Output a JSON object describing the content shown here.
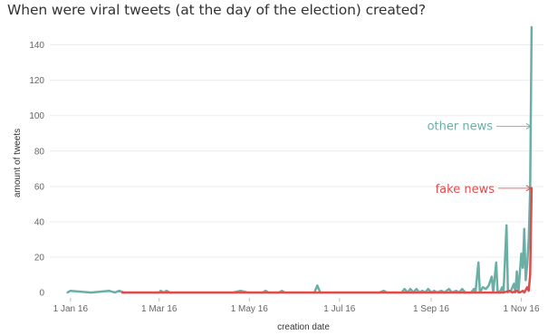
{
  "header": {
    "title": "When were viral tweets (at the day of the election) created?"
  },
  "colors": {
    "other_news": "#6aafa5",
    "fake_news": "#e04b4b",
    "grid": "#ececec",
    "baseline": "#cfcfcf"
  },
  "chart_data": {
    "type": "line",
    "title": "When were viral tweets (at the day of the election) created?",
    "xlabel": "creation date",
    "ylabel": "amount of tweets",
    "ylim": [
      -3,
      150
    ],
    "y_ticks": [
      0,
      20,
      40,
      60,
      80,
      100,
      120,
      140
    ],
    "xlim": [
      "2015-12-18",
      "2016-11-16"
    ],
    "x_ticks": [
      {
        "date": "2016-01-01",
        "label": "1 Jan 16"
      },
      {
        "date": "2016-03-01",
        "label": "1 Mar 16"
      },
      {
        "date": "2016-05-01",
        "label": "1 May 16"
      },
      {
        "date": "2016-07-01",
        "label": "1 Jul 16"
      },
      {
        "date": "2016-09-01",
        "label": "1 Sep 16"
      },
      {
        "date": "2016-11-01",
        "label": "1 Nov 16"
      }
    ],
    "grid": "horizontal",
    "series": [
      {
        "name": "other news",
        "color": "#6aafa5",
        "points": [
          [
            "2015-12-30",
            0
          ],
          [
            "2016-01-01",
            1
          ],
          [
            "2016-01-15",
            0
          ],
          [
            "2016-01-27",
            1
          ],
          [
            "2016-01-31",
            0
          ],
          [
            "2016-02-03",
            1
          ],
          [
            "2016-02-06",
            0
          ],
          [
            "2016-03-01",
            0
          ],
          [
            "2016-03-02",
            1
          ],
          [
            "2016-03-04",
            0
          ],
          [
            "2016-03-06",
            1
          ],
          [
            "2016-03-08",
            0
          ],
          [
            "2016-04-20",
            0
          ],
          [
            "2016-04-25",
            1
          ],
          [
            "2016-04-30",
            0
          ],
          [
            "2016-05-10",
            0
          ],
          [
            "2016-05-12",
            1
          ],
          [
            "2016-05-14",
            0
          ],
          [
            "2016-05-21",
            0
          ],
          [
            "2016-05-23",
            1
          ],
          [
            "2016-05-25",
            0
          ],
          [
            "2016-06-14",
            0
          ],
          [
            "2016-06-16",
            4
          ],
          [
            "2016-06-18",
            0
          ],
          [
            "2016-07-28",
            0
          ],
          [
            "2016-07-31",
            1
          ],
          [
            "2016-08-02",
            0
          ],
          [
            "2016-08-12",
            0
          ],
          [
            "2016-08-14",
            2
          ],
          [
            "2016-08-16",
            0
          ],
          [
            "2016-08-18",
            2
          ],
          [
            "2016-08-20",
            0
          ],
          [
            "2016-08-22",
            2
          ],
          [
            "2016-08-24",
            0
          ],
          [
            "2016-08-26",
            1
          ],
          [
            "2016-08-28",
            0
          ],
          [
            "2016-08-30",
            2
          ],
          [
            "2016-09-01",
            0
          ],
          [
            "2016-09-03",
            1
          ],
          [
            "2016-09-05",
            0
          ],
          [
            "2016-09-08",
            1
          ],
          [
            "2016-09-10",
            0
          ],
          [
            "2016-09-13",
            2
          ],
          [
            "2016-09-15",
            0
          ],
          [
            "2016-09-18",
            1
          ],
          [
            "2016-09-20",
            0
          ],
          [
            "2016-09-22",
            2
          ],
          [
            "2016-09-24",
            0
          ],
          [
            "2016-09-28",
            0
          ],
          [
            "2016-09-30",
            2
          ],
          [
            "2016-10-01",
            0
          ],
          [
            "2016-10-03",
            17
          ],
          [
            "2016-10-04",
            0
          ],
          [
            "2016-10-06",
            3
          ],
          [
            "2016-10-08",
            2
          ],
          [
            "2016-10-10",
            4
          ],
          [
            "2016-10-12",
            9
          ],
          [
            "2016-10-13",
            0
          ],
          [
            "2016-10-15",
            17
          ],
          [
            "2016-10-16",
            0
          ],
          [
            "2016-10-18",
            1
          ],
          [
            "2016-10-19",
            3
          ],
          [
            "2016-10-20",
            0
          ],
          [
            "2016-10-22",
            38
          ],
          [
            "2016-10-23",
            0
          ],
          [
            "2016-10-25",
            1
          ],
          [
            "2016-10-27",
            5
          ],
          [
            "2016-10-28",
            0
          ],
          [
            "2016-10-29",
            12
          ],
          [
            "2016-10-30",
            0
          ],
          [
            "2016-11-01",
            22
          ],
          [
            "2016-11-02",
            14
          ],
          [
            "2016-11-03",
            36
          ],
          [
            "2016-11-04",
            7
          ],
          [
            "2016-11-05",
            16
          ],
          [
            "2016-11-06",
            30
          ],
          [
            "2016-11-07",
            58
          ],
          [
            "2016-11-08",
            150
          ]
        ]
      },
      {
        "name": "fake news",
        "color": "#e04b4b",
        "points": [
          [
            "2016-02-05",
            0
          ],
          [
            "2016-03-09",
            0
          ],
          [
            "2016-05-01",
            0
          ],
          [
            "2016-07-01",
            0
          ],
          [
            "2016-09-01",
            0
          ],
          [
            "2016-10-20",
            0
          ],
          [
            "2016-10-24",
            1
          ],
          [
            "2016-10-26",
            0
          ],
          [
            "2016-10-29",
            1
          ],
          [
            "2016-10-31",
            0
          ],
          [
            "2016-11-02",
            1
          ],
          [
            "2016-11-03",
            0
          ],
          [
            "2016-11-05",
            3
          ],
          [
            "2016-11-06",
            1
          ],
          [
            "2016-11-07",
            10
          ],
          [
            "2016-11-08",
            59
          ]
        ]
      }
    ],
    "annotations": [
      {
        "text": "other news",
        "series": "other news",
        "date": "2016-11-08",
        "value": 94
      },
      {
        "text": "fake news",
        "series": "fake news",
        "date": "2016-11-08",
        "value": 59
      }
    ]
  }
}
